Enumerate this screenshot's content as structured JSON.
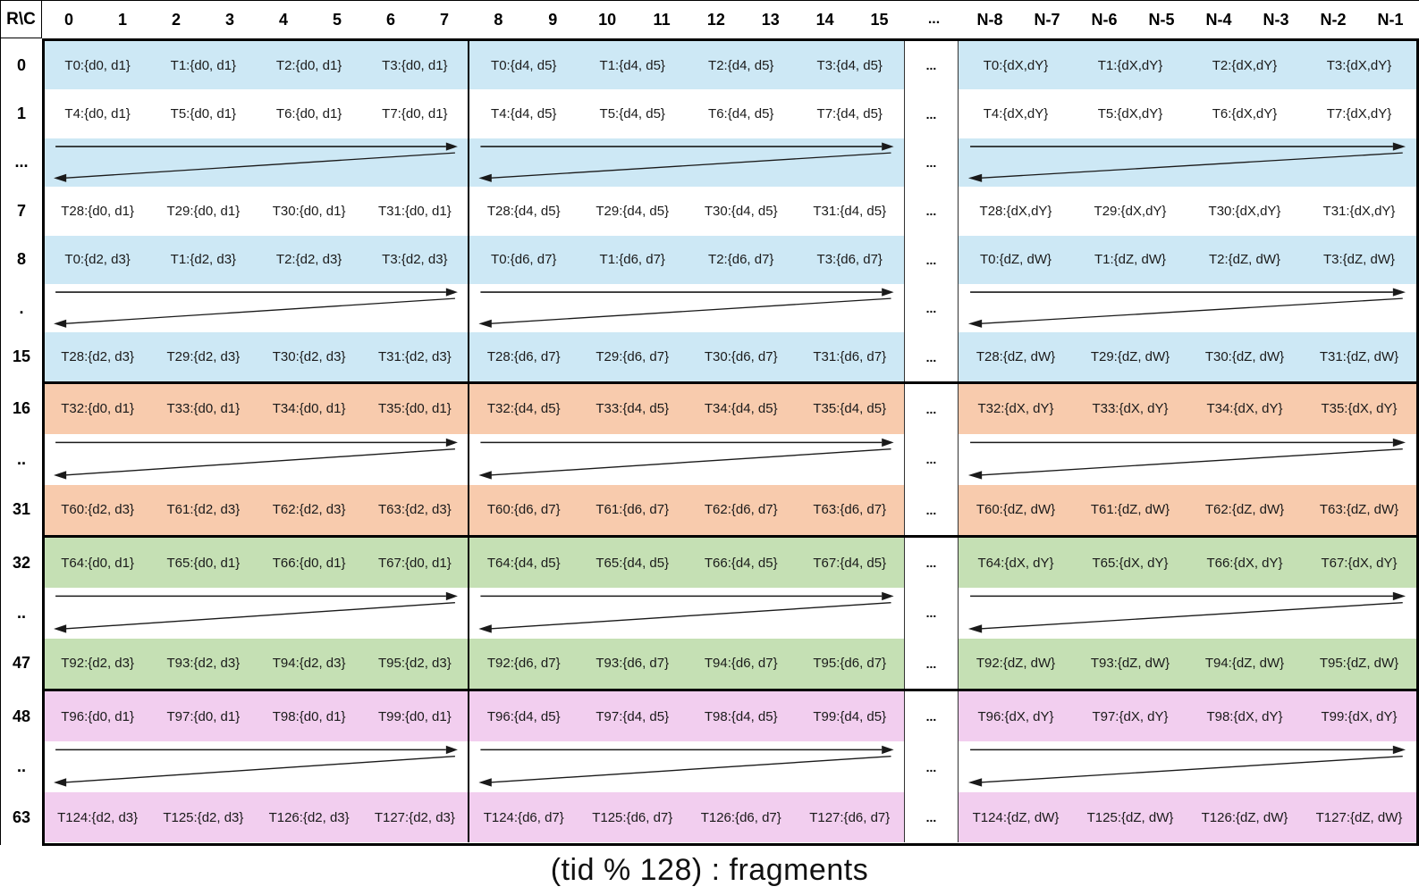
{
  "caption": "(tid % 128) : fragments",
  "table": {
    "corner_label": "R\\C",
    "ellipsis": "...",
    "col_groups": [
      {
        "cols": [
          "0",
          "1",
          "2",
          "3",
          "4",
          "5",
          "6",
          "7"
        ]
      },
      {
        "cols": [
          "8",
          "9",
          "10",
          "11",
          "12",
          "13",
          "14",
          "15"
        ]
      },
      {
        "cols": [
          "N-8",
          "N-7",
          "N-6",
          "N-5",
          "N-4",
          "N-3",
          "N-2",
          "N-1"
        ]
      }
    ],
    "bands": [
      {
        "name": "rows-0-15",
        "color": "#CDE8F5",
        "rows": [
          {
            "label": "0",
            "kind": "cells",
            "shaded": true,
            "groups": [
              [
                "T0:{d0, d1}",
                "T1:{d0, d1}",
                "T2:{d0, d1}",
                "T3:{d0, d1}"
              ],
              [
                "T0:{d4, d5}",
                "T1:{d4, d5}",
                "T2:{d4, d5}",
                "T3:{d4, d5}"
              ],
              [
                "T0:{dX,dY}",
                "T1:{dX,dY}",
                "T2:{dX,dY}",
                "T3:{dX,dY}"
              ]
            ]
          },
          {
            "label": "1",
            "kind": "cells",
            "shaded": false,
            "groups": [
              [
                "T4:{d0, d1}",
                "T5:{d0, d1}",
                "T6:{d0, d1}",
                "T7:{d0, d1}"
              ],
              [
                "T4:{d4, d5}",
                "T5:{d4, d5}",
                "T6:{d4, d5}",
                "T7:{d4, d5}"
              ],
              [
                "T4:{dX,dY}",
                "T5:{dX,dY}",
                "T6:{dX,dY}",
                "T7:{dX,dY}"
              ]
            ]
          },
          {
            "label": "...",
            "kind": "arrows",
            "shaded": true
          },
          {
            "label": "7",
            "kind": "cells",
            "shaded": false,
            "groups": [
              [
                "T28:{d0, d1}",
                "T29:{d0, d1}",
                "T30:{d0, d1}",
                "T31:{d0, d1}"
              ],
              [
                "T28:{d4, d5}",
                "T29:{d4, d5}",
                "T30:{d4, d5}",
                "T31:{d4, d5}"
              ],
              [
                "T28:{dX,dY}",
                "T29:{dX,dY}",
                "T30:{dX,dY}",
                "T31:{dX,dY}"
              ]
            ]
          },
          {
            "label": "8",
            "kind": "cells",
            "shaded": true,
            "groups": [
              [
                "T0:{d2, d3}",
                "T1:{d2, d3}",
                "T2:{d2, d3}",
                "T3:{d2, d3}"
              ],
              [
                "T0:{d6, d7}",
                "T1:{d6, d7}",
                "T2:{d6, d7}",
                "T3:{d6, d7}"
              ],
              [
                "T0:{dZ, dW}",
                "T1:{dZ, dW}",
                "T2:{dZ, dW}",
                "T3:{dZ, dW}"
              ]
            ]
          },
          {
            "label": ".",
            "kind": "arrows",
            "shaded": false
          },
          {
            "label": "15",
            "kind": "cells",
            "shaded": true,
            "groups": [
              [
                "T28:{d2, d3}",
                "T29:{d2, d3}",
                "T30:{d2, d3}",
                "T31:{d2, d3}"
              ],
              [
                "T28:{d6, d7}",
                "T29:{d6, d7}",
                "T30:{d6, d7}",
                "T31:{d6, d7}"
              ],
              [
                "T28:{dZ, dW}",
                "T29:{dZ, dW}",
                "T30:{dZ, dW}",
                "T31:{dZ, dW}"
              ]
            ]
          }
        ]
      },
      {
        "name": "rows-16-31",
        "color": "#F8CBAD",
        "rows": [
          {
            "label": "16",
            "kind": "cells",
            "shaded": true,
            "groups": [
              [
                "T32:{d0, d1}",
                "T33:{d0, d1}",
                "T34:{d0, d1}",
                "T35:{d0, d1}"
              ],
              [
                "T32:{d4, d5}",
                "T33:{d4, d5}",
                "T34:{d4, d5}",
                "T35:{d4, d5}"
              ],
              [
                "T32:{dX, dY}",
                "T33:{dX, dY}",
                "T34:{dX, dY}",
                "T35:{dX, dY}"
              ]
            ]
          },
          {
            "label": "..",
            "kind": "arrows",
            "shaded": false
          },
          {
            "label": "31",
            "kind": "cells",
            "shaded": true,
            "groups": [
              [
                "T60:{d2, d3}",
                "T61:{d2, d3}",
                "T62:{d2, d3}",
                "T63:{d2, d3}"
              ],
              [
                "T60:{d6, d7}",
                "T61:{d6, d7}",
                "T62:{d6, d7}",
                "T63:{d6, d7}"
              ],
              [
                "T60:{dZ, dW}",
                "T61:{dZ, dW}",
                "T62:{dZ, dW}",
                "T63:{dZ, dW}"
              ]
            ]
          }
        ]
      },
      {
        "name": "rows-32-47",
        "color": "#C5E0B4",
        "rows": [
          {
            "label": "32",
            "kind": "cells",
            "shaded": true,
            "groups": [
              [
                "T64:{d0, d1}",
                "T65:{d0, d1}",
                "T66:{d0, d1}",
                "T67:{d0, d1}"
              ],
              [
                "T64:{d4, d5}",
                "T65:{d4, d5}",
                "T66:{d4, d5}",
                "T67:{d4, d5}"
              ],
              [
                "T64:{dX, dY}",
                "T65:{dX, dY}",
                "T66:{dX, dY}",
                "T67:{dX, dY}"
              ]
            ]
          },
          {
            "label": "..",
            "kind": "arrows",
            "shaded": false
          },
          {
            "label": "47",
            "kind": "cells",
            "shaded": true,
            "groups": [
              [
                "T92:{d2, d3}",
                "T93:{d2, d3}",
                "T94:{d2, d3}",
                "T95:{d2, d3}"
              ],
              [
                "T92:{d6, d7}",
                "T93:{d6, d7}",
                "T94:{d6, d7}",
                "T95:{d6, d7}"
              ],
              [
                "T92:{dZ, dW}",
                "T93:{dZ, dW}",
                "T94:{dZ, dW}",
                "T95:{dZ, dW}"
              ]
            ]
          }
        ]
      },
      {
        "name": "rows-48-63",
        "color": "#F2CEEF",
        "rows": [
          {
            "label": "48",
            "kind": "cells",
            "shaded": true,
            "groups": [
              [
                "T96:{d0, d1}",
                "T97:{d0, d1}",
                "T98:{d0, d1}",
                "T99:{d0, d1}"
              ],
              [
                "T96:{d4, d5}",
                "T97:{d4, d5}",
                "T98:{d4, d5}",
                "T99:{d4, d5}"
              ],
              [
                "T96:{dX, dY}",
                "T97:{dX, dY}",
                "T98:{dX, dY}",
                "T99:{dX, dY}"
              ]
            ]
          },
          {
            "label": "..",
            "kind": "arrows",
            "shaded": false
          },
          {
            "label": "63",
            "kind": "cells",
            "shaded": true,
            "groups": [
              [
                "T124:{d2, d3}",
                "T125:{d2, d3}",
                "T126:{d2, d3}",
                "T127:{d2, d3}"
              ],
              [
                "T124:{d6, d7}",
                "T125:{d6, d7}",
                "T126:{d6, d7}",
                "T127:{d6, d7}"
              ],
              [
                "T124:{dZ, dW}",
                "T125:{dZ, dW}",
                "T126:{dZ, dW}",
                "T127:{dZ, dW}"
              ]
            ]
          }
        ]
      }
    ]
  },
  "icons": {
    "snake_arrow": "zigzag-row-traversal-arrow"
  }
}
